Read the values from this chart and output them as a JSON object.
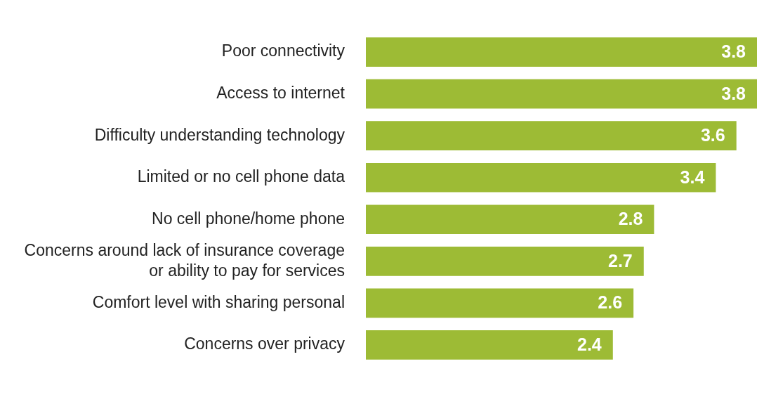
{
  "chart_data": {
    "type": "bar",
    "orientation": "horizontal",
    "categories": [
      "Poor connectivity",
      "Access to internet",
      "Difficulty understanding technology",
      "Limited or no cell phone data",
      "No cell phone/home phone",
      "Concerns around lack of insurance coverage or ability to pay for services",
      "Comfort level with sharing personal",
      "Concerns over privacy"
    ],
    "values": [
      3.8,
      3.8,
      3.6,
      3.4,
      2.8,
      2.7,
      2.6,
      2.4
    ],
    "color": "#9dbb35",
    "xlim": [
      0,
      3.8
    ],
    "data_labels": true,
    "tick_labels": "y",
    "grid": false,
    "legend": false
  }
}
